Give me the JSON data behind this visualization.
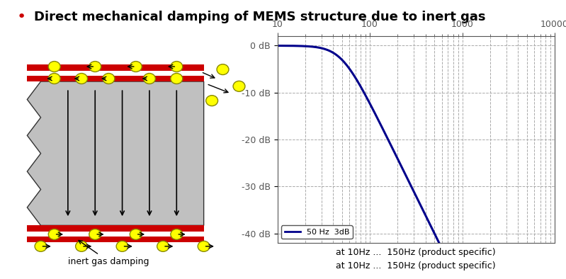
{
  "title": "Direct mechanical damping of MEMS structure due to inert gas",
  "title_bullet_color": "#cc0000",
  "bg_color": "#ffffff",
  "diagram_label": "inert gas damping",
  "plot_xlabel": "at 10Hz ...  150Hz (product specific)",
  "legend_label": "50 Hz  3dB",
  "yticks": [
    0,
    -10,
    -20,
    -30,
    -40
  ],
  "ytick_labels": [
    "0 dB",
    "-10 dB",
    "-20 dB",
    "-30 dB",
    "-40 dB"
  ],
  "xmin": 10,
  "xmax": 10000,
  "ymin": -42,
  "ymax": 2,
  "curve_color": "#00008B",
  "grid_color": "#aaaaaa",
  "fc_3db": 50,
  "plate_color": "#cc0000",
  "structure_color": "#c0c0c0",
  "ball_color": "#ffff00",
  "ball_edge": "#888800"
}
